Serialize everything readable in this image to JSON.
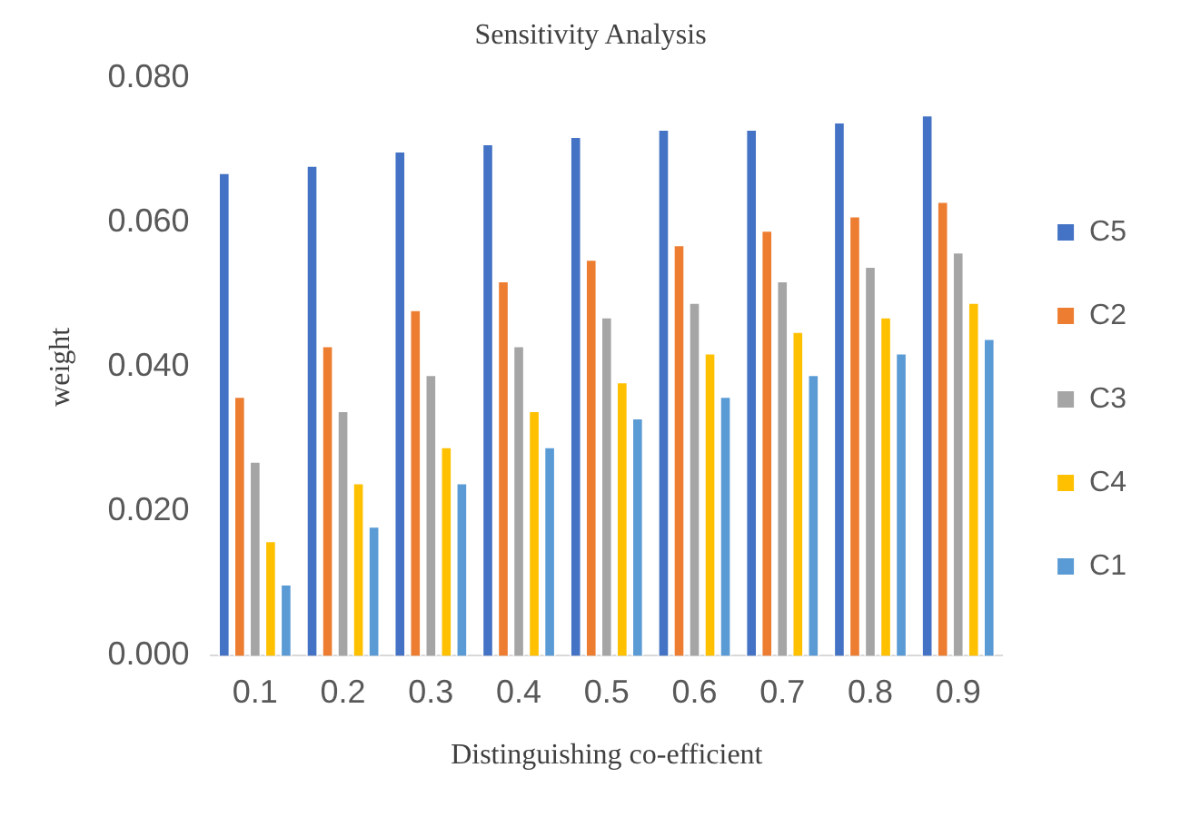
{
  "chart_data": {
    "type": "bar",
    "title": "Sensitivity Analysis",
    "xlabel": "Distinguishing co-efficient",
    "ylabel": "weight",
    "categories": [
      "0.1",
      "0.2",
      "0.3",
      "0.4",
      "0.5",
      "0.6",
      "0.7",
      "0.8",
      "0.9"
    ],
    "series": [
      {
        "name": "C5",
        "color": "#4472c4",
        "values": [
          0.067,
          0.068,
          0.07,
          0.071,
          0.072,
          0.073,
          0.073,
          0.074,
          0.075
        ]
      },
      {
        "name": "C2",
        "color": "#ed7d31",
        "values": [
          0.036,
          0.043,
          0.048,
          0.052,
          0.055,
          0.057,
          0.059,
          0.061,
          0.063
        ]
      },
      {
        "name": "C3",
        "color": "#a5a5a5",
        "values": [
          0.027,
          0.034,
          0.039,
          0.043,
          0.047,
          0.049,
          0.052,
          0.054,
          0.056
        ]
      },
      {
        "name": "C4",
        "color": "#ffc000",
        "values": [
          0.016,
          0.024,
          0.029,
          0.034,
          0.038,
          0.042,
          0.045,
          0.047,
          0.049
        ]
      },
      {
        "name": "C1",
        "color": "#5b9bd5",
        "values": [
          0.01,
          0.018,
          0.024,
          0.029,
          0.033,
          0.036,
          0.039,
          0.042,
          0.044
        ]
      }
    ],
    "ylim": [
      0,
      0.08
    ],
    "yticks": [
      {
        "value": 0,
        "label": "0.000"
      },
      {
        "value": 0.02,
        "label": "0.020"
      },
      {
        "value": 0.04,
        "label": "0.040"
      },
      {
        "value": 0.06,
        "label": "0.060"
      },
      {
        "value": 0.08,
        "label": "0.080"
      }
    ],
    "grid": false,
    "legend": "right"
  }
}
